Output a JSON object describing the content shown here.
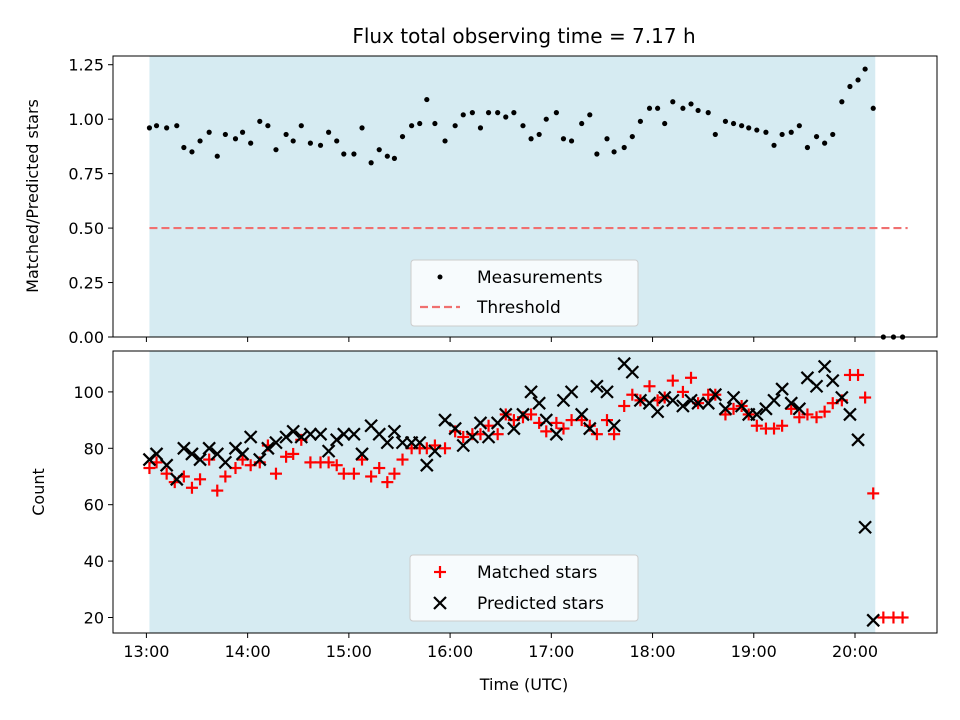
{
  "chart_data": [
    {
      "type": "scatter",
      "title": "Flux total observing time = 7.17 h",
      "ylabel": "Matched/Predicted stars",
      "xlim": [
        -0.33,
        7.81
      ],
      "ylim": [
        0.0,
        1.29
      ],
      "yticks": [
        "0.00",
        "0.25",
        "0.50",
        "0.75",
        "1.00",
        "1.25"
      ],
      "ytick_values": [
        0.0,
        0.25,
        0.5,
        0.75,
        1.0,
        1.25
      ],
      "observing_window": [
        0.03,
        7.2
      ],
      "threshold": {
        "value": 0.5,
        "x": [
          0.03,
          7.52
        ]
      },
      "legend": {
        "position": "lower-center",
        "entries": [
          "Measurements",
          "Threshold"
        ]
      },
      "series": [
        {
          "name": "Measurements",
          "x": [
            0.03,
            0.1,
            0.2,
            0.3,
            0.37,
            0.45,
            0.53,
            0.62,
            0.7,
            0.78,
            0.88,
            0.95,
            1.03,
            1.12,
            1.2,
            1.28,
            1.38,
            1.45,
            1.53,
            1.62,
            1.72,
            1.8,
            1.88,
            1.95,
            2.05,
            2.13,
            2.22,
            2.3,
            2.38,
            2.45,
            2.53,
            2.62,
            2.7,
            2.77,
            2.85,
            2.95,
            3.05,
            3.13,
            3.22,
            3.3,
            3.38,
            3.47,
            3.55,
            3.63,
            3.72,
            3.8,
            3.88,
            3.95,
            4.05,
            4.12,
            4.2,
            4.3,
            4.38,
            4.45,
            4.55,
            4.62,
            4.72,
            4.8,
            4.88,
            4.97,
            5.05,
            5.12,
            5.2,
            5.3,
            5.38,
            5.45,
            5.55,
            5.62,
            5.72,
            5.8,
            5.88,
            5.95,
            6.03,
            6.12,
            6.2,
            6.28,
            6.37,
            6.45,
            6.53,
            6.62,
            6.7,
            6.78,
            6.87,
            6.95,
            7.03,
            7.1,
            7.18,
            7.28,
            7.38,
            7.47
          ],
          "y": [
            0.96,
            0.97,
            0.96,
            0.97,
            0.87,
            0.85,
            0.9,
            0.94,
            0.83,
            0.93,
            0.91,
            0.94,
            0.89,
            0.99,
            0.97,
            0.86,
            0.93,
            0.9,
            0.97,
            0.89,
            0.88,
            0.94,
            0.9,
            0.84,
            0.84,
            0.96,
            0.8,
            0.86,
            0.83,
            0.82,
            0.92,
            0.97,
            0.98,
            1.09,
            0.98,
            0.9,
            0.97,
            1.02,
            1.03,
            0.96,
            1.03,
            1.03,
            1.01,
            1.03,
            0.97,
            0.91,
            0.93,
            1.0,
            1.03,
            0.91,
            0.9,
            0.98,
            1.02,
            0.84,
            0.91,
            0.85,
            0.87,
            0.92,
            0.99,
            1.05,
            1.05,
            0.98,
            1.08,
            1.05,
            1.07,
            1.04,
            1.03,
            0.93,
            0.99,
            0.98,
            0.97,
            0.96,
            0.95,
            0.94,
            0.88,
            0.93,
            0.94,
            0.97,
            0.87,
            0.92,
            0.89,
            0.93,
            1.08,
            1.15,
            1.18,
            1.23,
            1.05,
            0.0,
            0.0,
            0.0
          ],
          "color": "#000000"
        },
        {
          "name": "Threshold",
          "color": "#f07070"
        }
      ]
    },
    {
      "type": "scatter",
      "xlabel": "Time (UTC)",
      "ylabel": "Count",
      "xlim": [
        -0.33,
        7.81
      ],
      "ylim": [
        14.5,
        114.5
      ],
      "xticks": [
        "13:00",
        "14:00",
        "15:00",
        "16:00",
        "17:00",
        "18:00",
        "19:00",
        "20:00"
      ],
      "xtick_values": [
        0,
        1,
        2,
        3,
        4,
        5,
        6,
        7
      ],
      "yticks": [
        "20",
        "40",
        "60",
        "80",
        "100"
      ],
      "ytick_values": [
        20,
        40,
        60,
        80,
        100
      ],
      "observing_window": [
        0.03,
        7.2
      ],
      "legend": {
        "position": "lower-center",
        "entries": [
          "Matched stars",
          "Predicted stars"
        ]
      },
      "series": [
        {
          "name": "Matched stars",
          "marker": "plus",
          "color": "#ff0000",
          "x": [
            0.03,
            0.1,
            0.2,
            0.28,
            0.37,
            0.45,
            0.53,
            0.62,
            0.7,
            0.78,
            0.88,
            0.95,
            1.03,
            1.12,
            1.2,
            1.28,
            1.38,
            1.45,
            1.53,
            1.62,
            1.72,
            1.8,
            1.88,
            1.95,
            2.05,
            2.13,
            2.22,
            2.3,
            2.38,
            2.45,
            2.53,
            2.62,
            2.7,
            2.77,
            2.85,
            2.95,
            3.05,
            3.13,
            3.22,
            3.3,
            3.38,
            3.47,
            3.55,
            3.63,
            3.72,
            3.8,
            3.88,
            3.95,
            4.05,
            4.12,
            4.2,
            4.3,
            4.38,
            4.45,
            4.55,
            4.62,
            4.72,
            4.8,
            4.88,
            4.97,
            5.05,
            5.12,
            5.2,
            5.3,
            5.38,
            5.45,
            5.55,
            5.62,
            5.72,
            5.8,
            5.88,
            5.95,
            6.03,
            6.12,
            6.2,
            6.28,
            6.37,
            6.45,
            6.53,
            6.62,
            6.7,
            6.78,
            6.87,
            6.95,
            7.03,
            7.1,
            7.18,
            7.28,
            7.38,
            7.47
          ],
          "y": [
            73,
            75,
            71,
            68,
            70,
            66,
            69,
            76,
            65,
            70,
            73,
            76,
            74,
            75,
            81,
            71,
            77,
            78,
            83,
            75,
            75,
            75,
            74,
            71,
            71,
            76,
            70,
            73,
            68,
            71,
            76,
            80,
            80,
            80,
            81,
            80,
            86,
            84,
            85,
            85,
            88,
            85,
            92,
            90,
            91,
            92,
            89,
            86,
            89,
            87,
            90,
            90,
            88,
            85,
            90,
            85,
            95,
            99,
            97,
            102,
            97,
            98,
            104,
            100,
            105,
            96,
            99,
            99,
            92,
            94,
            95,
            92,
            88,
            87,
            87,
            88,
            94,
            91,
            92,
            91,
            93,
            96,
            97,
            106,
            106,
            98,
            64,
            20,
            20,
            20
          ]
        },
        {
          "name": "Predicted stars",
          "marker": "x",
          "color": "#000000",
          "x": [
            0.03,
            0.1,
            0.2,
            0.3,
            0.37,
            0.45,
            0.53,
            0.62,
            0.7,
            0.78,
            0.88,
            0.95,
            1.03,
            1.12,
            1.2,
            1.28,
            1.38,
            1.45,
            1.53,
            1.62,
            1.72,
            1.8,
            1.88,
            1.95,
            2.05,
            2.13,
            2.22,
            2.3,
            2.38,
            2.45,
            2.53,
            2.62,
            2.7,
            2.77,
            2.85,
            2.95,
            3.05,
            3.13,
            3.22,
            3.3,
            3.38,
            3.47,
            3.55,
            3.63,
            3.72,
            3.8,
            3.88,
            3.95,
            4.05,
            4.12,
            4.2,
            4.3,
            4.38,
            4.45,
            4.55,
            4.62,
            4.72,
            4.8,
            4.88,
            4.97,
            5.05,
            5.12,
            5.2,
            5.3,
            5.38,
            5.45,
            5.55,
            5.62,
            5.72,
            5.8,
            5.88,
            5.95,
            6.03,
            6.12,
            6.2,
            6.28,
            6.37,
            6.45,
            6.53,
            6.62,
            6.7,
            6.78,
            6.87,
            6.95,
            7.03,
            7.1,
            7.18
          ],
          "y": [
            76,
            78,
            74,
            69,
            80,
            78,
            76,
            80,
            78,
            75,
            80,
            78,
            84,
            76,
            80,
            82,
            84,
            86,
            84,
            85,
            85,
            79,
            83,
            85,
            85,
            78,
            88,
            85,
            82,
            86,
            82,
            82,
            82,
            74,
            79,
            90,
            87,
            81,
            84,
            89,
            84,
            89,
            92,
            87,
            92,
            100,
            96,
            90,
            85,
            97,
            100,
            92,
            87,
            102,
            100,
            88,
            110,
            107,
            97,
            96,
            93,
            98,
            97,
            95,
            97,
            96,
            96,
            99,
            94,
            98,
            95,
            92,
            92,
            94,
            97,
            101,
            96,
            94,
            105,
            102,
            109,
            104,
            98,
            92,
            83,
            52,
            19
          ]
        }
      ]
    }
  ]
}
